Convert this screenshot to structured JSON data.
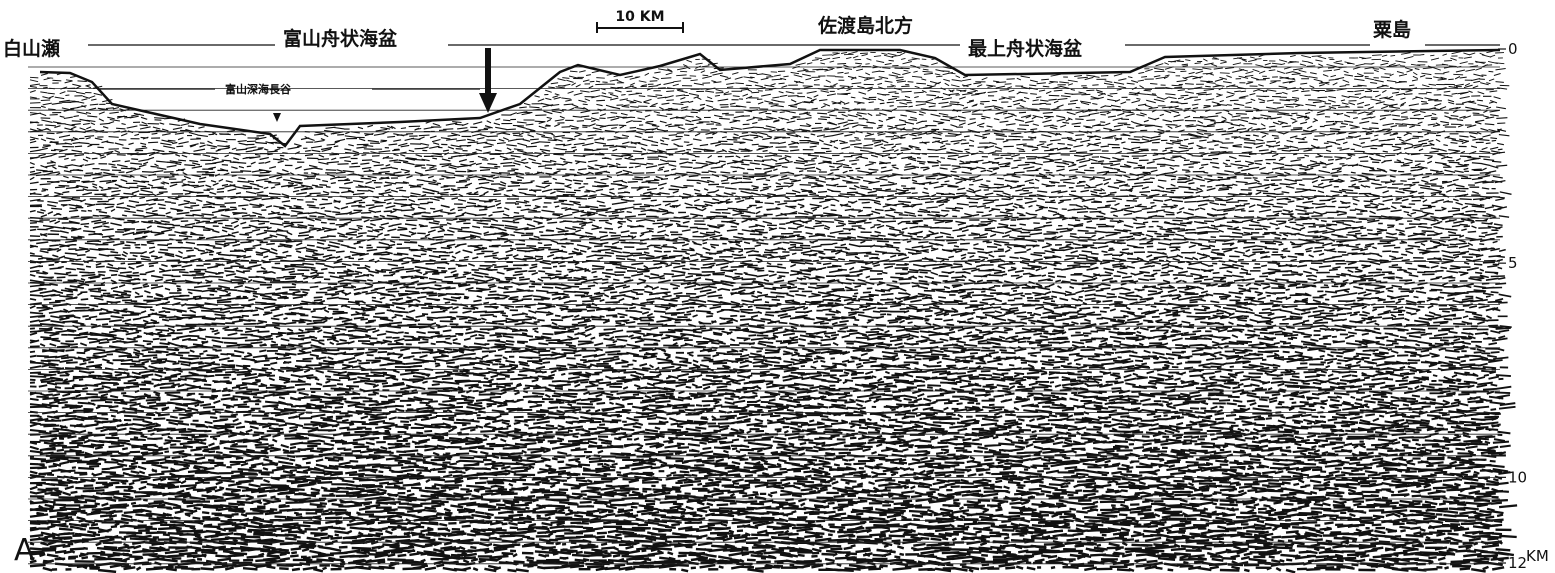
{
  "labels": {
    "hakusan_se": "白山瀬",
    "toyama_trough": "富山舟状海盆",
    "sado_north": "佐渡島北方",
    "mogami_trough": "最上舟状海盆",
    "awashima": "粟島",
    "toyama_channel": "富山深海長谷"
  },
  "scale_bar": "10 KM",
  "panel_label": "A",
  "depth_axis": {
    "lim": [
      0,
      12
    ],
    "ticks": [
      0,
      5,
      10,
      12
    ],
    "unit": "KM"
  }
}
